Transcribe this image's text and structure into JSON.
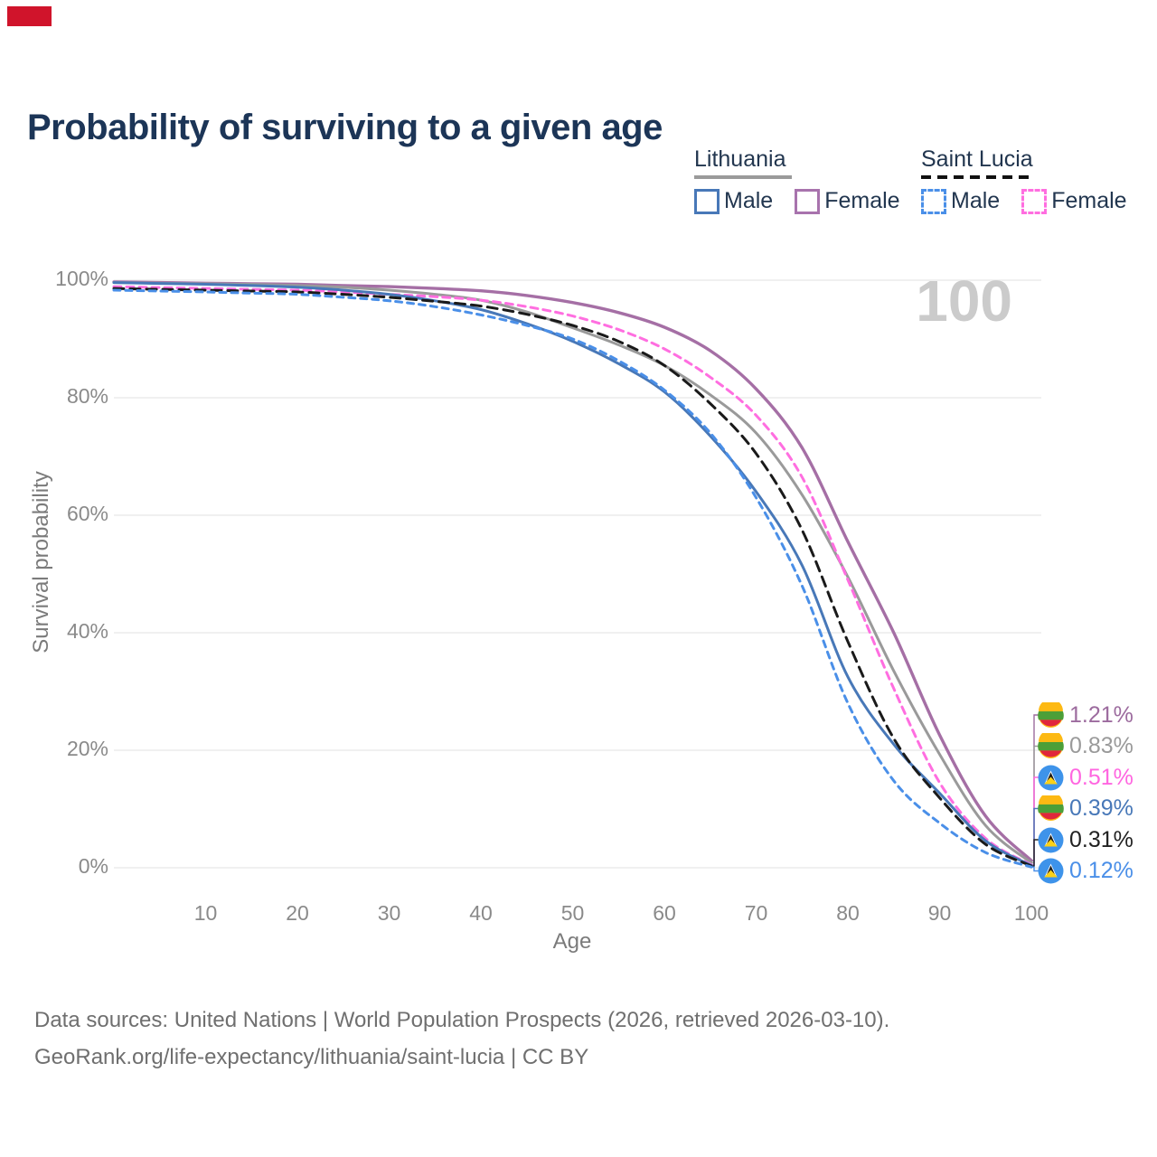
{
  "indicator": {
    "color": "#d0142b"
  },
  "title": "Probability of surviving to a given age",
  "legend": {
    "groups": [
      {
        "label": "Lithuania",
        "underline": "solid",
        "items": [
          {
            "label": "Male",
            "color": "#4878b8",
            "dashed": false
          },
          {
            "label": "Female",
            "color": "#a873ad",
            "dashed": false
          }
        ]
      },
      {
        "label": "Saint Lucia",
        "underline": "dashed",
        "items": [
          {
            "label": "Male",
            "color": "#4a8fe8",
            "dashed": true
          },
          {
            "label": "Female",
            "color": "#ff6ee0",
            "dashed": true
          }
        ]
      }
    ]
  },
  "watermark": "100",
  "chart_data": {
    "type": "line",
    "title": "Probability of surviving to a given age",
    "xlabel": "Age",
    "ylabel": "Survival probability",
    "xlim": [
      0,
      100
    ],
    "ylim": [
      0,
      100
    ],
    "x_ticks": [
      10,
      20,
      30,
      40,
      50,
      60,
      70,
      80,
      90,
      100
    ],
    "y_ticks": [
      100,
      80,
      60,
      40,
      20,
      0
    ],
    "y_tick_suffix": "%",
    "grid": "horizontal",
    "legend_position": "top-right",
    "ages": [
      0,
      5,
      10,
      15,
      20,
      25,
      30,
      35,
      40,
      45,
      50,
      55,
      60,
      65,
      70,
      75,
      80,
      85,
      90,
      95,
      100
    ],
    "series": [
      {
        "name": "Lithuania Female",
        "country": "Lithuania",
        "sex": "Female",
        "color": "#a56fa5",
        "dash": null,
        "width": 3.4,
        "values": [
          99.7,
          99.6,
          99.5,
          99.4,
          99.3,
          99.1,
          98.9,
          98.6,
          98.2,
          97.4,
          96.2,
          94.5,
          92.0,
          88.0,
          81.5,
          71.5,
          55.5,
          40.0,
          22.6,
          8.8,
          1.21
        ]
      },
      {
        "name": "Lithuania Total",
        "country": "Lithuania",
        "sex": "Both",
        "color": "#9a9a9a",
        "dash": null,
        "width": 3,
        "values": [
          99.6,
          99.5,
          99.4,
          99.3,
          99.1,
          98.8,
          98.3,
          97.6,
          96.6,
          94.6,
          91.9,
          89.0,
          85.5,
          80.5,
          74.0,
          63.5,
          49.5,
          33.5,
          19.3,
          7.2,
          0.83
        ]
      },
      {
        "name": "Saint Lucia Female",
        "country": "Saint Lucia",
        "sex": "Female",
        "color": "#ff6ee0",
        "dash": "8 6",
        "width": 3,
        "values": [
          98.9,
          98.75,
          98.6,
          98.45,
          98.3,
          98.0,
          97.6,
          97.2,
          96.6,
          95.5,
          93.9,
          91.6,
          88.3,
          83.5,
          77.0,
          66.5,
          49.0,
          30.5,
          14.5,
          5.0,
          0.51
        ]
      },
      {
        "name": "Lithuania Male",
        "country": "Lithuania",
        "sex": "Male",
        "color": "#4878b8",
        "dash": null,
        "width": 3,
        "values": [
          99.6,
          99.45,
          99.3,
          99.1,
          98.8,
          98.3,
          97.6,
          96.5,
          95.0,
          92.6,
          89.6,
          85.8,
          81.0,
          73.5,
          64.0,
          51.5,
          32.5,
          21.0,
          12.7,
          4.6,
          0.39
        ]
      },
      {
        "name": "Saint Lucia Total",
        "country": "Saint Lucia",
        "sex": "Both",
        "color": "#1a1a1a",
        "dash": "11 7",
        "width": 3,
        "values": [
          98.6,
          98.45,
          98.3,
          98.15,
          98.0,
          97.6,
          97.1,
          96.4,
          95.6,
          94.2,
          92.3,
          89.6,
          85.5,
          79.0,
          70.5,
          57.5,
          38.5,
          22.0,
          11.9,
          4.0,
          0.31
        ]
      },
      {
        "name": "Saint Lucia Male",
        "country": "Saint Lucia",
        "sex": "Male",
        "color": "#4a8fe8",
        "dash": "7 6",
        "width": 3,
        "values": [
          98.3,
          98.15,
          98.0,
          97.8,
          97.6,
          97.1,
          96.5,
          95.5,
          94.1,
          92.3,
          90.0,
          86.3,
          81.3,
          74.0,
          63.0,
          48.0,
          28.0,
          14.8,
          7.6,
          2.6,
          0.12
        ]
      }
    ],
    "end_labels": [
      {
        "value": "1.21%",
        "number": 1.21,
        "color": "#9c6b9e",
        "flag": "lithuania",
        "series": "Lithuania Female"
      },
      {
        "value": "0.83%",
        "number": 0.83,
        "color": "#9a9a9a",
        "flag": "lithuania",
        "series": "Lithuania Total"
      },
      {
        "value": "0.51%",
        "number": 0.51,
        "color": "#ff66e0",
        "flag": "saint-lucia",
        "series": "Saint Lucia Female"
      },
      {
        "value": "0.39%",
        "number": 0.39,
        "color": "#4878b8",
        "flag": "lithuania",
        "series": "Lithuania Male"
      },
      {
        "value": "0.31%",
        "number": 0.31,
        "color": "#222222",
        "flag": "saint-lucia",
        "series": "Saint Lucia Total"
      },
      {
        "value": "0.12%",
        "number": 0.12,
        "color": "#4a8fe8",
        "flag": "saint-lucia",
        "series": "Saint Lucia Male"
      }
    ]
  },
  "footer": {
    "line1": "Data sources: United Nations | World Population Prospects (2026, retrieved 2026-03-10).",
    "line2": "GeoRank.org/life-expectancy/lithuania/saint-lucia | CC BY"
  }
}
